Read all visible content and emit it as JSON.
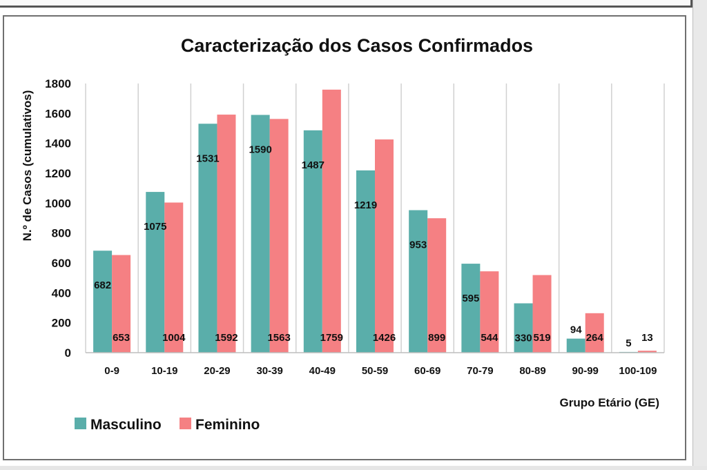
{
  "chart_data": {
    "type": "bar",
    "title": "Caracterização dos Casos Confirmados",
    "xlabel": "Grupo Etário (GE)",
    "ylabel": "N.º de Casos (cumulativos)",
    "ylim": [
      0,
      1800
    ],
    "yticks": [
      0,
      200,
      400,
      600,
      800,
      1000,
      1200,
      1400,
      1600,
      1800
    ],
    "categories": [
      "0-9",
      "10-19",
      "20-29",
      "30-39",
      "40-49",
      "50-59",
      "60-69",
      "70-79",
      "80-89",
      "90-99",
      "100-109"
    ],
    "series": [
      {
        "name": "Masculino",
        "color": "#5aaeaa",
        "values": [
          682,
          1075,
          1531,
          1590,
          1487,
          1219,
          953,
          595,
          330,
          94,
          5
        ]
      },
      {
        "name": "Feminino",
        "color": "#f58083",
        "values": [
          653,
          1004,
          1592,
          1563,
          1759,
          1426,
          899,
          544,
          519,
          264,
          13
        ]
      }
    ],
    "grid": "vertical",
    "legend": "bottom-left"
  }
}
